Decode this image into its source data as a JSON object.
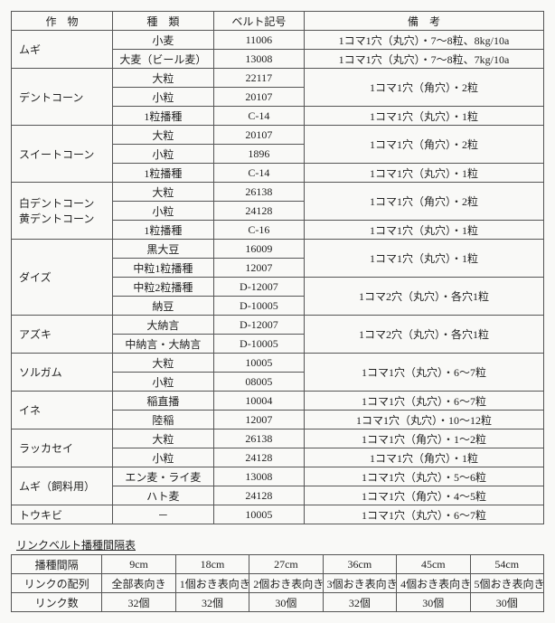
{
  "main_table": {
    "headers": [
      "作　物",
      "種　類",
      "ベルト記号",
      "備　考"
    ],
    "rows": [
      {
        "crop": "ムギ",
        "crop_rows": 2,
        "type": "小麦",
        "belt": "11006",
        "remark": "1コマ1穴（丸穴）・7～8粒、8kg/10a",
        "remark_rows": 1
      },
      {
        "type": "大麦（ビール麦）",
        "belt": "13008",
        "remark": "1コマ1穴（丸穴）・7～8粒、7kg/10a",
        "remark_rows": 1
      },
      {
        "crop": "デントコーン",
        "crop_rows": 3,
        "type": "大粒",
        "belt": "22117",
        "remark": "1コマ1穴（角穴）・2粒",
        "remark_rows": 2
      },
      {
        "type": "小粒",
        "belt": "20107"
      },
      {
        "type": "1粒播種",
        "belt": "C-14",
        "remark": "1コマ1穴（丸穴）・1粒",
        "remark_rows": 1
      },
      {
        "crop": "スイートコーン",
        "crop_rows": 3,
        "type": "大粒",
        "belt": "20107",
        "remark": "1コマ1穴（角穴）・2粒",
        "remark_rows": 2
      },
      {
        "type": "小粒",
        "belt": "1896"
      },
      {
        "type": "1粒播種",
        "belt": "C-14",
        "remark": "1コマ1穴（丸穴）・1粒",
        "remark_rows": 1
      },
      {
        "crop": "白デントコーン\n黄デントコーン",
        "crop_rows": 3,
        "type": "大粒",
        "belt": "26138",
        "remark": "1コマ1穴（角穴）・2粒",
        "remark_rows": 2
      },
      {
        "type": "小粒",
        "belt": "24128"
      },
      {
        "type": "1粒播種",
        "belt": "C-16",
        "remark": "1コマ1穴（丸穴）・1粒",
        "remark_rows": 1
      },
      {
        "crop": "ダイズ",
        "crop_rows": 4,
        "type": "黒大豆",
        "belt": "16009",
        "remark": "1コマ1穴（丸穴）・1粒",
        "remark_rows": 2
      },
      {
        "type": "中粒1粒播種",
        "belt": "12007"
      },
      {
        "type": "中粒2粒播種",
        "belt": "D-12007",
        "remark": "1コマ2穴（丸穴）・各穴1粒",
        "remark_rows": 2
      },
      {
        "type": "納豆",
        "belt": "D-10005"
      },
      {
        "crop": "アズキ",
        "crop_rows": 2,
        "type": "大納言",
        "belt": "D-12007",
        "remark": "1コマ2穴（丸穴）・各穴1粒",
        "remark_rows": 2
      },
      {
        "type": "中納言・大納言",
        "belt": "D-10005"
      },
      {
        "crop": "ソルガム",
        "crop_rows": 2,
        "type": "大粒",
        "belt": "10005",
        "remark": "1コマ1穴（丸穴）・6～7粒",
        "remark_rows": 2
      },
      {
        "type": "小粒",
        "belt": "08005"
      },
      {
        "crop": "イネ",
        "crop_rows": 2,
        "type": "稲直播",
        "belt": "10004",
        "remark": "1コマ1穴（丸穴）・6～7粒",
        "remark_rows": 1
      },
      {
        "type": "陸稲",
        "belt": "12007",
        "remark": "1コマ1穴（丸穴）・10～12粒",
        "remark_rows": 1
      },
      {
        "crop": "ラッカセイ",
        "crop_rows": 2,
        "type": "大粒",
        "belt": "26138",
        "remark": "1コマ1穴（角穴）・1～2粒",
        "remark_rows": 1
      },
      {
        "type": "小粒",
        "belt": "24128",
        "remark": "1コマ1穴（角穴）・1粒",
        "remark_rows": 1
      },
      {
        "crop": "ムギ（飼料用）",
        "crop_rows": 2,
        "type": "エン麦・ライ麦",
        "belt": "13008",
        "remark": "1コマ1穴（丸穴）・5～6粒",
        "remark_rows": 1
      },
      {
        "type": "ハト麦",
        "belt": "24128",
        "remark": "1コマ1穴（角穴）・4～5粒",
        "remark_rows": 1
      },
      {
        "crop": "トウキビ",
        "crop_rows": 1,
        "type": "－",
        "belt": "10005",
        "remark": "1コマ1穴（丸穴）・6～7粒",
        "remark_rows": 1
      }
    ]
  },
  "sub_title": "リンクベルト播種間隔表",
  "sub_table": {
    "rows": [
      [
        "播種間隔",
        "9cm",
        "18cm",
        "27cm",
        "36cm",
        "45cm",
        "54cm"
      ],
      [
        "リンクの配列",
        "全部表向き",
        "1個おき表向き",
        "2個おき表向き",
        "3個おき表向き",
        "4個おき表向き",
        "5個おき表向き"
      ],
      [
        "リンク数",
        "32個",
        "32個",
        "30個",
        "32個",
        "30個",
        "30個"
      ]
    ]
  }
}
